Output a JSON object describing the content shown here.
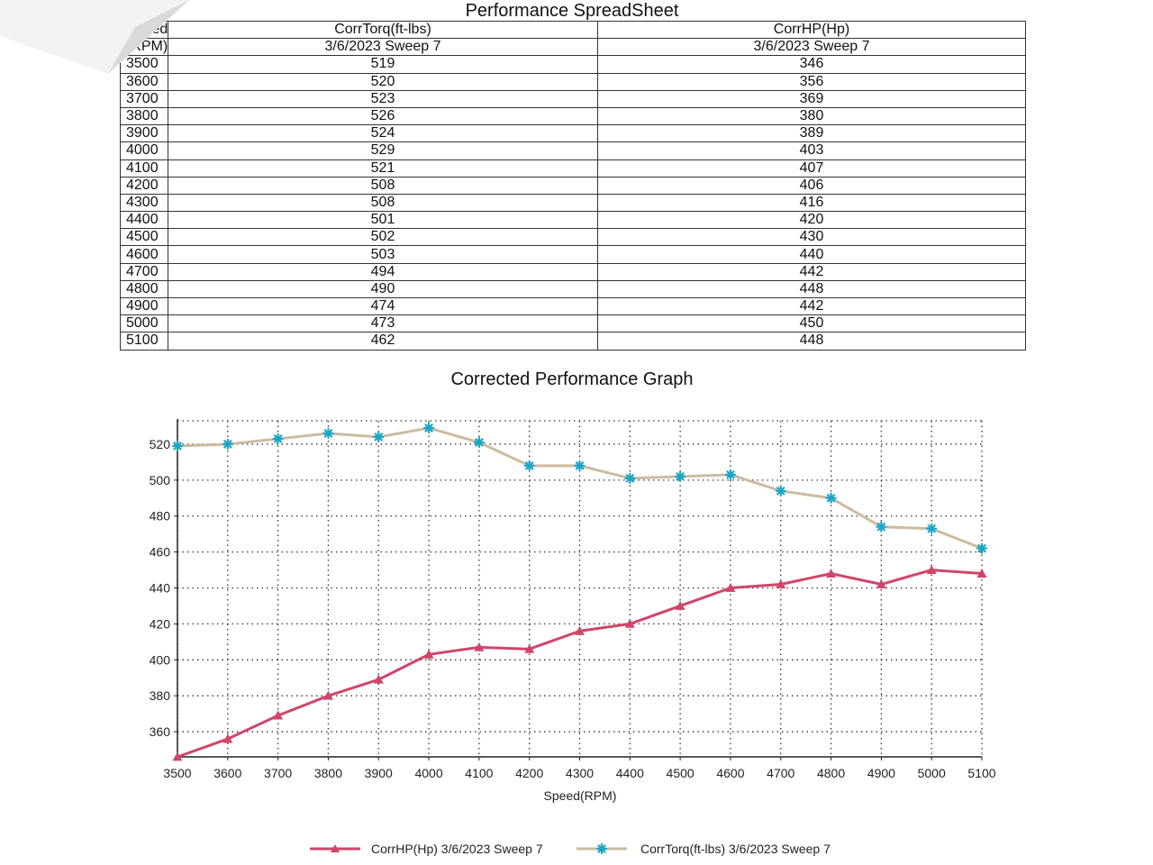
{
  "sheet_title": "Performance SpreadSheet",
  "table": {
    "header1": [
      "Speed",
      "CorrTorq(ft-lbs)",
      "CorrHP(Hp)"
    ],
    "header2": [
      "(RPM)",
      "3/6/2023 Sweep 7",
      "3/6/2023 Sweep 7"
    ],
    "rows": [
      [
        "3500",
        "519",
        "346"
      ],
      [
        "3600",
        "520",
        "356"
      ],
      [
        "3700",
        "523",
        "369"
      ],
      [
        "3800",
        "526",
        "380"
      ],
      [
        "3900",
        "524",
        "389"
      ],
      [
        "4000",
        "529",
        "403"
      ],
      [
        "4100",
        "521",
        "407"
      ],
      [
        "4200",
        "508",
        "406"
      ],
      [
        "4300",
        "508",
        "416"
      ],
      [
        "4400",
        "501",
        "420"
      ],
      [
        "4500",
        "502",
        "430"
      ],
      [
        "4600",
        "503",
        "440"
      ],
      [
        "4700",
        "494",
        "442"
      ],
      [
        "4800",
        "490",
        "448"
      ],
      [
        "4900",
        "474",
        "442"
      ],
      [
        "5000",
        "473",
        "450"
      ],
      [
        "5100",
        "462",
        "448"
      ]
    ]
  },
  "graph_title": "Corrected Performance Graph",
  "chart_data": {
    "type": "line",
    "title": "Corrected Performance Graph",
    "xlabel": "Speed(RPM)",
    "ylabel": "",
    "x": [
      3500,
      3600,
      3700,
      3800,
      3900,
      4000,
      4100,
      4200,
      4300,
      4400,
      4500,
      4600,
      4700,
      4800,
      4900,
      5000,
      5100
    ],
    "xticks": [
      "3500",
      "3600",
      "3700",
      "3800",
      "3900",
      "4000",
      "4100",
      "4200",
      "4300",
      "4400",
      "4500",
      "4600",
      "4700",
      "4800",
      "4900",
      "5000",
      "5100"
    ],
    "yticks": [
      "360",
      "380",
      "400",
      "420",
      "440",
      "460",
      "480",
      "500",
      "520"
    ],
    "ytick_values": [
      360,
      380,
      400,
      420,
      440,
      460,
      480,
      500,
      520
    ],
    "ylim": [
      346,
      529
    ],
    "xlim": [
      3500,
      5100
    ],
    "grid": true,
    "legend_position": "bottom",
    "series": [
      {
        "name": "CorrHP(Hp) 3/6/2023 Sweep 7",
        "color": "#d0456a",
        "marker": "triangle",
        "values": [
          346,
          356,
          369,
          380,
          389,
          403,
          407,
          406,
          416,
          420,
          430,
          440,
          442,
          448,
          442,
          450,
          448
        ]
      },
      {
        "name": "CorrTorq(ft-lbs) 3/6/2023 Sweep 7",
        "color": "#cdbba0",
        "marker_color": "#1aa6c8",
        "marker": "star",
        "values": [
          519,
          520,
          523,
          526,
          524,
          529,
          521,
          508,
          508,
          501,
          502,
          503,
          494,
          490,
          474,
          473,
          462
        ]
      }
    ]
  }
}
